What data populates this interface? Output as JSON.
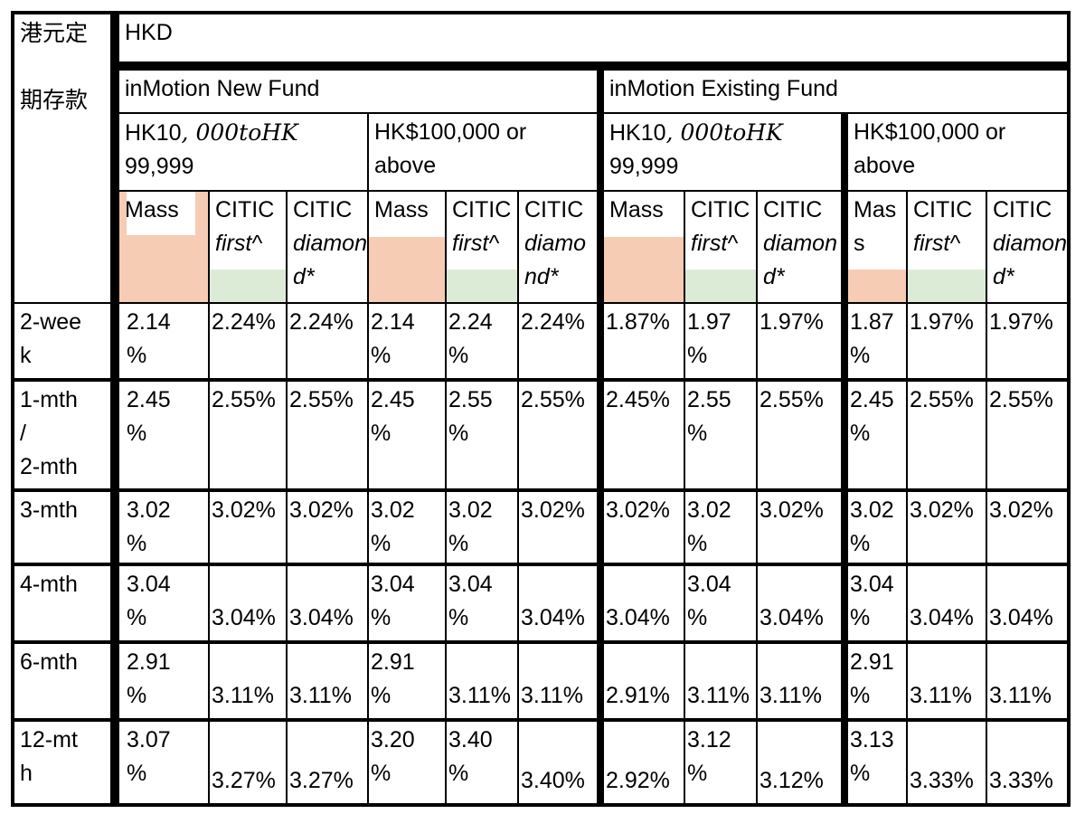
{
  "table": {
    "corner_label": "港元定\n\n期存款",
    "currency": "HKD",
    "funds": [
      {
        "label": "inMotion New Fund"
      },
      {
        "label": "inMotion Existing Fund"
      }
    ],
    "tiers": [
      {
        "label_prefix": "HK10",
        "label_math": ", 000toHK",
        "label_suffix": "99,999"
      },
      {
        "label": "HK$100,000 or\nabove"
      },
      {
        "label_prefix": "HK10",
        "label_math": ", 000toHK",
        "label_suffix": "99,999"
      },
      {
        "label": "HK$100,000 or\nabove"
      }
    ],
    "sub_headers": [
      {
        "label": "Mass",
        "highlight": "#f7ccb4",
        "italic": false
      },
      {
        "label_plain": "CITIC",
        "label_ital": "first^",
        "highlight": "#dcebd6"
      },
      {
        "label_plain": "CITIC",
        "label_ital": "diamond*",
        "highlight": null
      },
      {
        "label": "Mass",
        "highlight": "#f7ccb4",
        "italic": false
      },
      {
        "label_plain": "CITIC",
        "label_ital": "first^",
        "highlight": "#dcebd6"
      },
      {
        "label_plain": "CITIC",
        "label_ital": "diamond*",
        "highlight": null
      },
      {
        "label": "Mass",
        "highlight": "#f7ccb4",
        "italic": false
      },
      {
        "label_plain": "CITIC",
        "label_ital": "first^",
        "highlight": "#dcebd6"
      },
      {
        "label_plain": "CITIC",
        "label_ital": "diamond*",
        "highlight": null
      },
      {
        "label": "Mas\ns",
        "highlight": "#f7ccb4",
        "italic": false
      },
      {
        "label_plain": "CITIC",
        "label_ital": "first^",
        "highlight": "#dcebd6"
      },
      {
        "label_plain": "CITIC",
        "label_ital": "diamond*",
        "highlight": null
      }
    ],
    "rows": [
      {
        "tenor": "2-wee\nk",
        "rates": [
          "2.14\n%",
          "2.24%",
          "2.24%",
          "2.14\n%",
          "2.24\n%",
          "2.24%",
          "1.87%",
          "1.97\n%",
          "1.97%",
          "1.87\n%",
          "1.97%",
          "1.97%"
        ],
        "valign": "top"
      },
      {
        "tenor": "1-mth\n/\n2-mth",
        "rates": [
          "2.45\n%",
          "2.55%",
          "2.55%",
          "2.45\n%",
          "2.55\n%",
          "2.55%",
          "2.45%",
          "2.55\n%",
          "2.55%",
          "2.45\n%",
          "2.55%",
          "2.55%"
        ],
        "valign": "top"
      },
      {
        "tenor": "3-mth",
        "rates": [
          "3.02\n%",
          "3.02%",
          "3.02%",
          "3.02\n%",
          "3.02\n%",
          "3.02%",
          "3.02%",
          "3.02\n%",
          "3.02%",
          "3.02\n%",
          "3.02%",
          "3.02%"
        ],
        "valign": "top"
      },
      {
        "tenor": "4-mth",
        "rates": [
          "3.04\n%",
          "3.04%",
          "3.04%",
          "3.04\n%",
          "3.04\n%",
          "3.04%",
          "3.04%",
          "3.04\n%",
          "3.04%",
          "3.04\n%",
          "3.04%",
          "3.04%"
        ],
        "valign": "bottom"
      },
      {
        "tenor": "6-mth",
        "rates": [
          "2.91\n%",
          "3.11%",
          "3.11%",
          "2.91\n%",
          "3.11%",
          "3.11%",
          "2.91%",
          "3.11%",
          "3.11%",
          "2.91\n%",
          "3.11%",
          "3.11%"
        ],
        "valign": "bottom"
      },
      {
        "tenor": "12-mt\nh",
        "rates": [
          "3.07\n%",
          "3.27%",
          "3.27%",
          "3.20\n%",
          "3.40\n%",
          "3.40%",
          "2.92%",
          "3.12\n%",
          "3.12%",
          "3.13\n%",
          "3.33%",
          "3.33%"
        ],
        "valign": "bottom"
      }
    ]
  }
}
